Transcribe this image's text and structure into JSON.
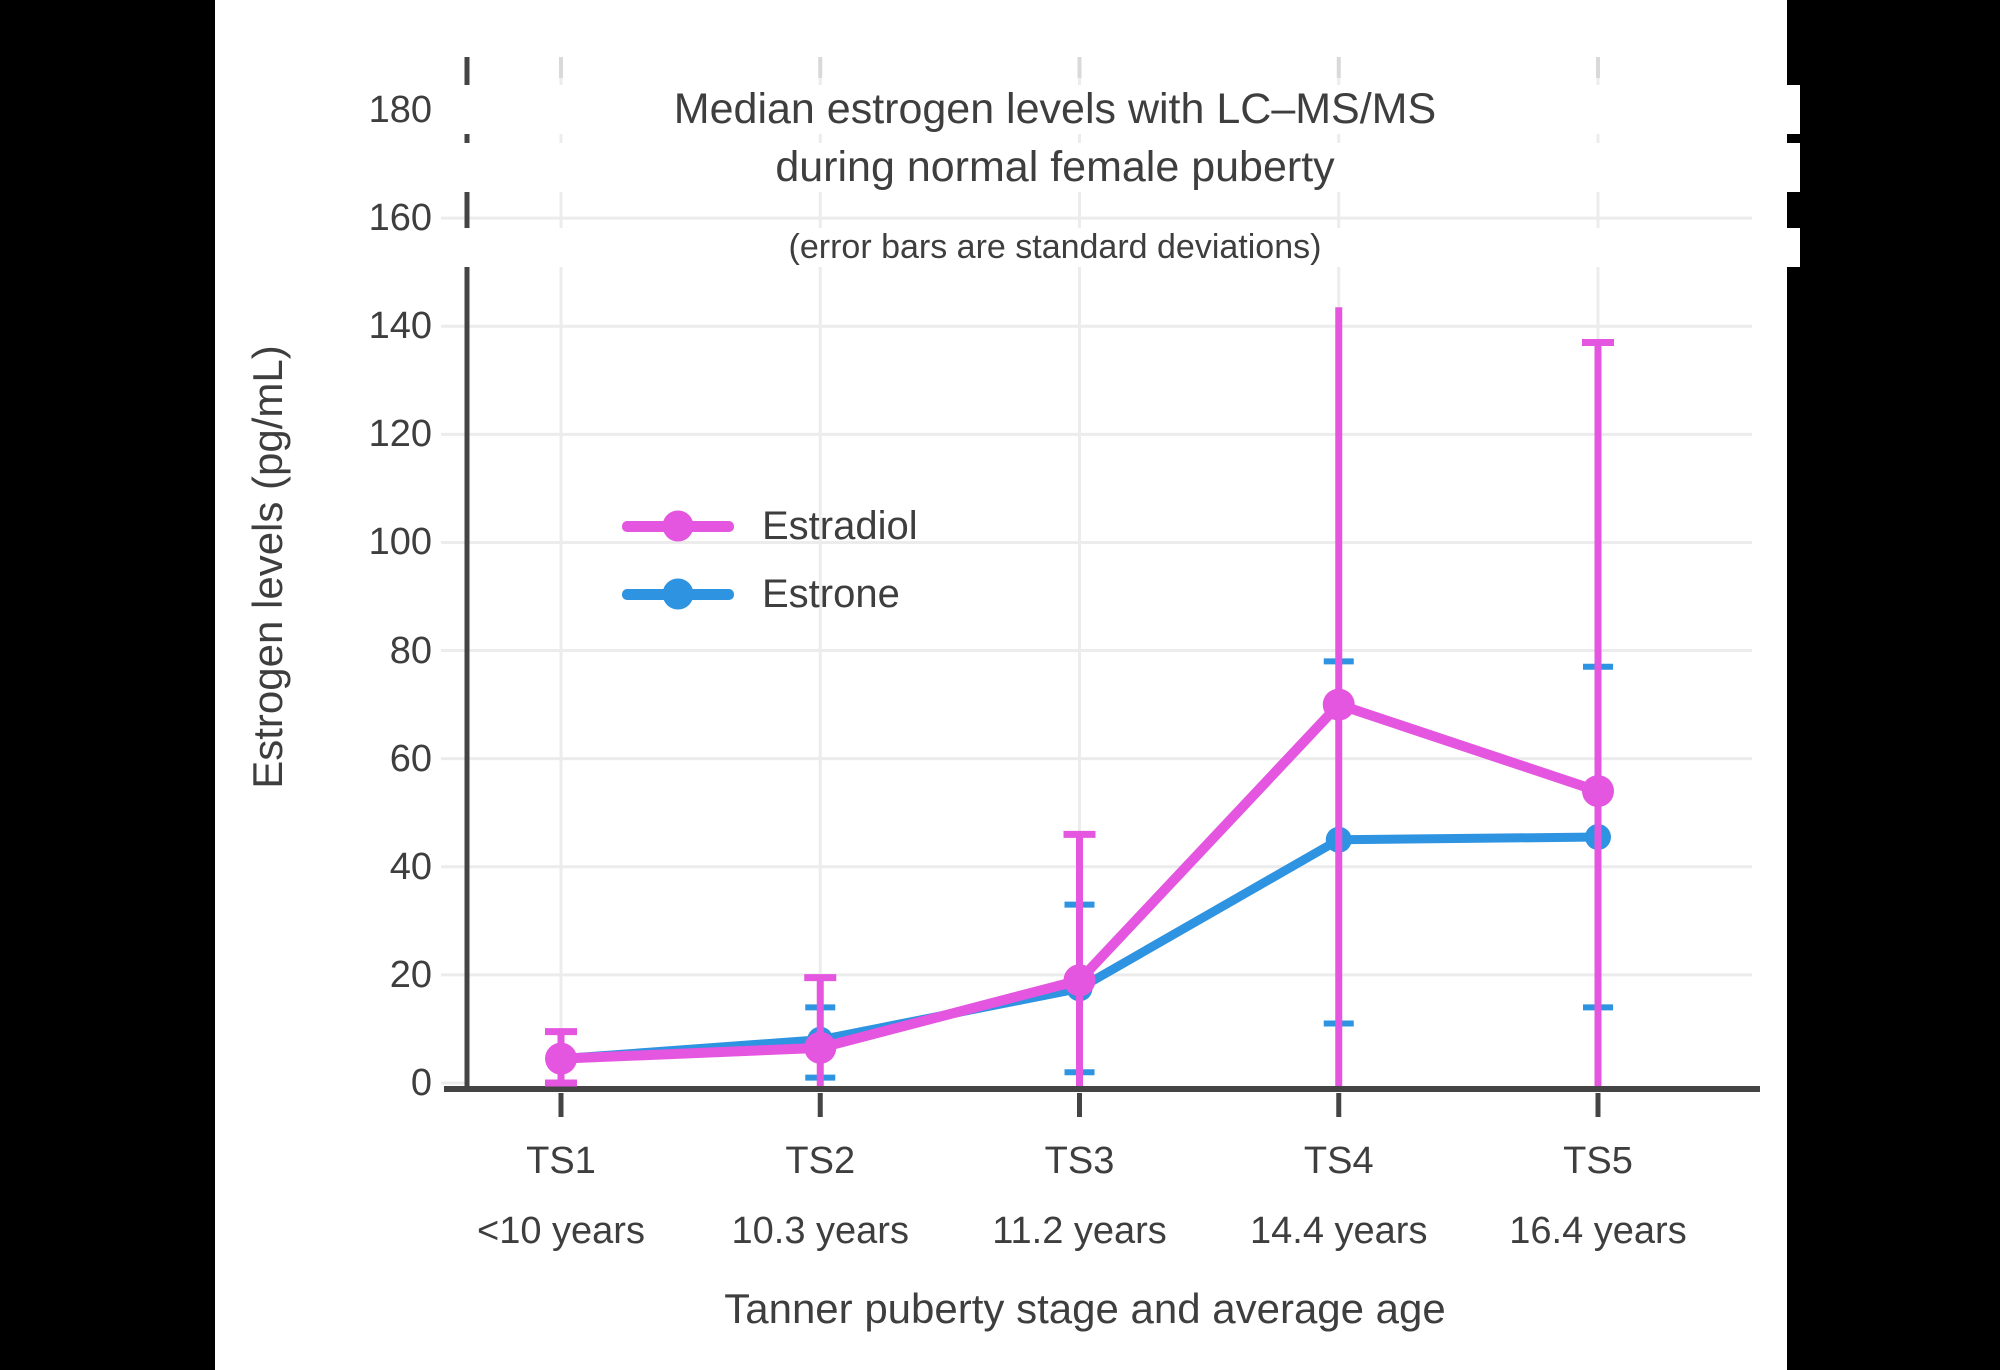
{
  "page": {
    "background": "#000000",
    "panel_background": "#ffffff"
  },
  "colors": {
    "text": "#3e3e3e",
    "axis": "#444444",
    "grid": "#ececec",
    "top_tick": "#d9d9d9",
    "estradiol": "#e455e0",
    "estrone": "#2e93e0"
  },
  "chart_data": {
    "type": "line",
    "title_line1": "Median estrogen levels with LC–MS/MS",
    "title_line2": "during normal female puberty",
    "subtitle": "(error bars are standard deviations)",
    "xlabel": "Tanner puberty stage and average age",
    "ylabel": "Estrogen levels (pg/mL)",
    "y_ticks": [
      0,
      20,
      40,
      60,
      80,
      100,
      120,
      140,
      160,
      180
    ],
    "ylim": [
      0,
      190
    ],
    "grid": true,
    "legend_position": "inside-left-middle",
    "categories": [
      {
        "stage": "TS1",
        "age": "<10 years"
      },
      {
        "stage": "TS2",
        "age": "10.3 years"
      },
      {
        "stage": "TS3",
        "age": "11.2 years"
      },
      {
        "stage": "TS4",
        "age": "14.4 years"
      },
      {
        "stage": "TS5",
        "age": "16.4 years"
      }
    ],
    "series": [
      {
        "name": "Estradiol",
        "color": "#e455e0",
        "values": [
          4.5,
          6.5,
          19,
          70,
          54
        ],
        "error_top": [
          9.5,
          19.5,
          46,
          143.5,
          137
        ],
        "error_bottom": [
          0,
          null,
          null,
          null,
          null
        ],
        "error_top_cap": [
          true,
          true,
          true,
          false,
          true
        ],
        "error_bottom_cap": [
          true,
          false,
          false,
          false,
          false
        ]
      },
      {
        "name": "Estrone",
        "color": "#2e93e0",
        "values": [
          4.5,
          8,
          17.5,
          45,
          45.5
        ],
        "error_top": [
          null,
          14,
          33,
          78,
          77
        ],
        "error_bottom": [
          null,
          1,
          2,
          11,
          14
        ],
        "error_top_cap": [
          false,
          true,
          true,
          true,
          true
        ],
        "error_bottom_cap": [
          false,
          true,
          true,
          true,
          true
        ]
      }
    ]
  }
}
